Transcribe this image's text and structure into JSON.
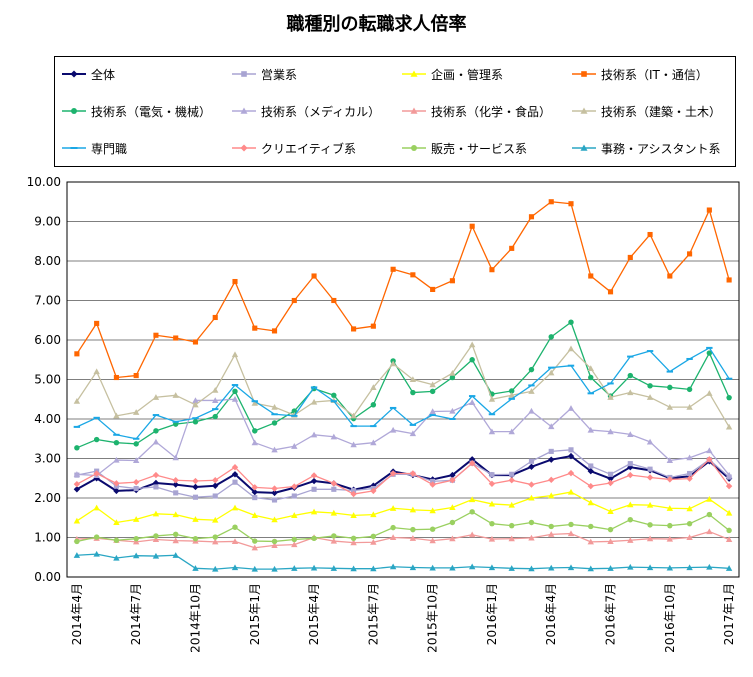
{
  "chart_data": {
    "type": "line",
    "title": "職種別の転職求人倍率",
    "xlabel": "",
    "ylabel": "",
    "ylim": [
      0,
      10
    ],
    "yticks": [
      "0.00",
      "1.00",
      "2.00",
      "3.00",
      "4.00",
      "5.00",
      "6.00",
      "7.00",
      "8.00",
      "9.00",
      "10.00"
    ],
    "grid": true,
    "legend_position": "top",
    "x": [
      "2014年4月",
      "2014年5月",
      "2014年6月",
      "2014年7月",
      "2014年8月",
      "2014年9月",
      "2014年10月",
      "2014年11月",
      "2014年12月",
      "2015年1月",
      "2015年2月",
      "2015年3月",
      "2015年4月",
      "2015年5月",
      "2015年6月",
      "2015年7月",
      "2015年8月",
      "2015年9月",
      "2015年10月",
      "2015年11月",
      "2015年12月",
      "2016年1月",
      "2016年2月",
      "2016年3月",
      "2016年4月",
      "2016年5月",
      "2016年6月",
      "2016年7月",
      "2016年8月",
      "2016年9月",
      "2016年10月",
      "2016年11月",
      "2016年12月",
      "2017年1月"
    ],
    "xtick_labels": [
      "2014年4月",
      "2014年7月",
      "2014年10月",
      "2015年1月",
      "2015年4月",
      "2015年7月",
      "2015年10月",
      "2016年1月",
      "2016年4月",
      "2016年7月",
      "2016年10月",
      "2017年1月"
    ],
    "series": [
      {
        "name": "全体",
        "color": "#0a0a6e",
        "marker": "diamond",
        "values": [
          2.22,
          2.5,
          2.18,
          2.2,
          2.38,
          2.34,
          2.28,
          2.31,
          2.6,
          2.15,
          2.13,
          2.26,
          2.43,
          2.37,
          2.21,
          2.31,
          2.67,
          2.58,
          2.47,
          2.58,
          2.98,
          2.58,
          2.58,
          2.79,
          2.97,
          3.06,
          2.68,
          2.49,
          2.78,
          2.7,
          2.5,
          2.55,
          2.93,
          2.49
        ]
      },
      {
        "name": "営業系",
        "color": "#a8a4d2",
        "marker": "square",
        "values": [
          2.58,
          2.68,
          2.3,
          2.24,
          2.28,
          2.13,
          2.02,
          2.05,
          2.4,
          2.01,
          1.95,
          2.05,
          2.22,
          2.22,
          2.19,
          2.24,
          2.6,
          2.6,
          2.42,
          2.45,
          2.88,
          2.59,
          2.6,
          2.93,
          3.18,
          3.22,
          2.81,
          2.6,
          2.87,
          2.73,
          2.52,
          2.62,
          2.97,
          2.53
        ]
      },
      {
        "name": "企画・管理系",
        "color": "#ffff00",
        "marker": "triangle",
        "values": [
          1.42,
          1.75,
          1.38,
          1.46,
          1.6,
          1.58,
          1.46,
          1.44,
          1.75,
          1.56,
          1.45,
          1.56,
          1.65,
          1.62,
          1.56,
          1.58,
          1.74,
          1.7,
          1.68,
          1.76,
          1.96,
          1.85,
          1.82,
          2.0,
          2.06,
          2.15,
          1.88,
          1.66,
          1.83,
          1.82,
          1.74,
          1.73,
          1.97,
          1.62
        ]
      },
      {
        "name": "技術系（IT・通信）",
        "color": "#ff6600",
        "marker": "square",
        "values": [
          5.65,
          6.42,
          5.05,
          5.1,
          6.12,
          6.05,
          5.95,
          6.57,
          7.48,
          6.3,
          6.23,
          7.0,
          7.62,
          7.0,
          6.28,
          6.35,
          7.79,
          7.65,
          7.28,
          7.5,
          8.88,
          7.78,
          8.32,
          9.12,
          9.5,
          9.45,
          7.62,
          7.22,
          8.09,
          8.67,
          7.62,
          8.18,
          9.29,
          7.52
        ]
      },
      {
        "name": "技術系（電気・機械）",
        "color": "#1db36e",
        "marker": "circle",
        "values": [
          3.27,
          3.48,
          3.4,
          3.37,
          3.7,
          3.87,
          3.93,
          4.06,
          4.7,
          3.7,
          3.9,
          4.2,
          4.77,
          4.6,
          4.01,
          4.36,
          5.47,
          4.67,
          4.7,
          5.05,
          5.5,
          4.63,
          4.71,
          5.25,
          6.08,
          6.45,
          5.05,
          4.58,
          5.1,
          4.84,
          4.8,
          4.75,
          5.67,
          4.54
        ]
      },
      {
        "name": "技術系（メディカル）",
        "color": "#b0a8d8",
        "marker": "triangle",
        "values": [
          2.6,
          2.57,
          2.96,
          2.95,
          3.42,
          3.02,
          4.47,
          4.47,
          4.5,
          3.4,
          3.22,
          3.31,
          3.6,
          3.55,
          3.35,
          3.4,
          3.72,
          3.63,
          4.19,
          4.2,
          4.42,
          3.68,
          3.68,
          4.2,
          3.81,
          4.27,
          3.72,
          3.68,
          3.61,
          3.42,
          2.95,
          3.02,
          3.2,
          2.58
        ]
      },
      {
        "name": "技術系（化学・食品）",
        "color": "#f29a9a",
        "marker": "triangle",
        "values": [
          0.96,
          0.98,
          0.93,
          0.89,
          0.95,
          0.92,
          0.91,
          0.89,
          0.9,
          0.74,
          0.8,
          0.82,
          1.0,
          0.91,
          0.87,
          0.88,
          1.0,
          0.98,
          0.92,
          0.97,
          1.07,
          0.96,
          0.97,
          0.99,
          1.08,
          1.1,
          0.89,
          0.9,
          0.93,
          0.97,
          0.96,
          1.0,
          1.15,
          0.95
        ]
      },
      {
        "name": "技術系（建築・土木）",
        "color": "#c6c0a0",
        "marker": "triangle",
        "values": [
          4.45,
          5.2,
          4.08,
          4.17,
          4.55,
          4.6,
          4.36,
          4.73,
          5.63,
          4.4,
          4.3,
          4.1,
          4.43,
          4.47,
          4.08,
          4.8,
          5.4,
          5.0,
          4.87,
          5.16,
          5.88,
          4.5,
          4.6,
          4.7,
          5.17,
          5.78,
          5.28,
          4.55,
          4.67,
          4.55,
          4.3,
          4.3,
          4.65,
          3.8
        ]
      },
      {
        "name": "専門職",
        "color": "#1aa7e5",
        "marker": "dash",
        "values": [
          3.8,
          4.03,
          3.6,
          3.5,
          4.1,
          3.93,
          4.02,
          4.25,
          4.86,
          4.45,
          4.12,
          4.08,
          4.8,
          4.45,
          3.82,
          3.82,
          4.28,
          3.85,
          4.1,
          4.0,
          4.58,
          4.12,
          4.51,
          4.85,
          5.3,
          5.35,
          4.65,
          4.9,
          5.58,
          5.72,
          5.2,
          5.52,
          5.8,
          5.02
        ]
      },
      {
        "name": "クリエイティブ系",
        "color": "#ff8a8a",
        "marker": "diamond",
        "values": [
          2.35,
          2.62,
          2.37,
          2.4,
          2.58,
          2.45,
          2.43,
          2.45,
          2.78,
          2.27,
          2.24,
          2.29,
          2.57,
          2.37,
          2.1,
          2.18,
          2.62,
          2.62,
          2.34,
          2.45,
          2.88,
          2.36,
          2.45,
          2.34,
          2.46,
          2.63,
          2.3,
          2.38,
          2.58,
          2.52,
          2.47,
          2.49,
          2.98,
          2.3
        ]
      },
      {
        "name": "販売・サービス系",
        "color": "#9ad060",
        "marker": "circle",
        "values": [
          0.9,
          1.01,
          0.93,
          0.97,
          1.04,
          1.08,
          0.97,
          1.01,
          1.26,
          0.91,
          0.9,
          0.95,
          0.98,
          1.04,
          0.98,
          1.03,
          1.25,
          1.2,
          1.21,
          1.38,
          1.65,
          1.35,
          1.3,
          1.38,
          1.28,
          1.33,
          1.28,
          1.2,
          1.45,
          1.32,
          1.3,
          1.35,
          1.58,
          1.18
        ]
      },
      {
        "name": "事務・アシスタント系",
        "color": "#2aa6c4",
        "marker": "triangle",
        "values": [
          0.55,
          0.58,
          0.48,
          0.54,
          0.53,
          0.55,
          0.22,
          0.2,
          0.24,
          0.2,
          0.2,
          0.22,
          0.23,
          0.22,
          0.21,
          0.21,
          0.26,
          0.24,
          0.23,
          0.23,
          0.26,
          0.24,
          0.22,
          0.21,
          0.23,
          0.24,
          0.21,
          0.22,
          0.25,
          0.24,
          0.23,
          0.24,
          0.25,
          0.22
        ]
      }
    ]
  }
}
